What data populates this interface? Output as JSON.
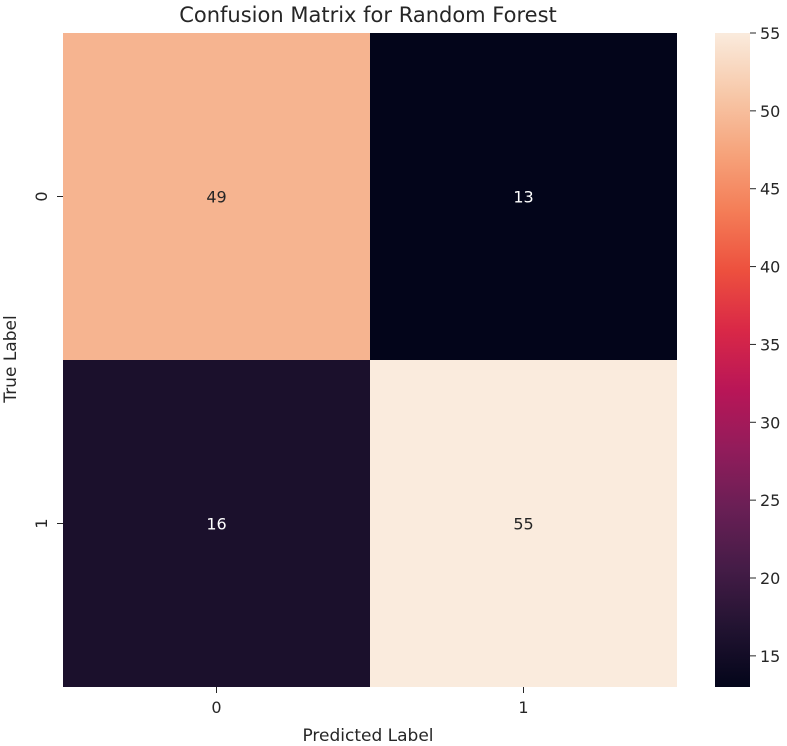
{
  "chart_data": {
    "type": "heatmap",
    "title": "Confusion Matrix for Random Forest",
    "xlabel": "Predicted Label",
    "ylabel": "True Label",
    "x_categories": [
      "0",
      "1"
    ],
    "y_categories": [
      "0",
      "1"
    ],
    "values": [
      [
        49,
        13
      ],
      [
        16,
        55
      ]
    ],
    "colormap": "rocket",
    "colorbar": {
      "min": 13,
      "max": 55,
      "ticks": [
        15,
        20,
        25,
        30,
        35,
        40,
        45,
        50,
        55
      ],
      "stops": [
        "#03051a",
        "#221331",
        "#451c47",
        "#691f55",
        "#921c5b",
        "#b91657",
        "#d92847",
        "#ed503e",
        "#f47d57",
        "#f6a47c",
        "#f7c9aa",
        "#faebdd"
      ]
    },
    "grid": false
  }
}
